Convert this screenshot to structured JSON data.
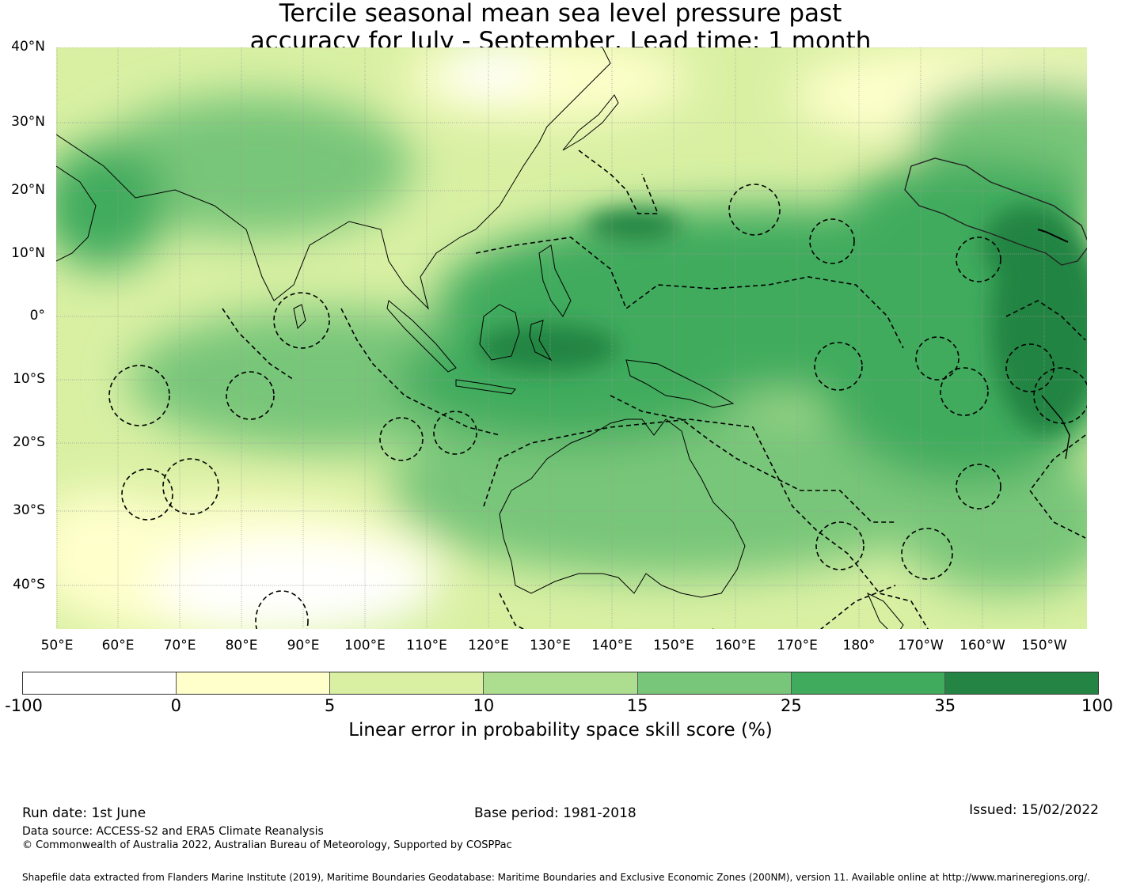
{
  "title": {
    "line1": "Tercile seasonal mean sea level pressure past",
    "line2": "accuracy for July - September, Lead time: 1 month"
  },
  "axes": {
    "lat_labels": [
      "40°N",
      "30°N",
      "20°N",
      "10°N",
      "0°",
      "10°S",
      "20°S",
      "30°S",
      "40°S"
    ],
    "lon_labels": [
      "50°E",
      "60°E",
      "70°E",
      "80°E",
      "90°E",
      "100°E",
      "110°E",
      "120°E",
      "130°E",
      "140°E",
      "150°E",
      "160°E",
      "170°E",
      "180°",
      "170°W",
      "160°W",
      "150°W"
    ]
  },
  "colorbar": {
    "ticks": [
      "-100",
      "0",
      "5",
      "10",
      "15",
      "25",
      "35",
      "100"
    ],
    "colors": [
      "#ffffff",
      "#ffffcc",
      "#d9f0a3",
      "#addd8e",
      "#78c679",
      "#41ab5d",
      "#238443"
    ],
    "label": "Linear error in probability space skill score (%)"
  },
  "footer": {
    "run_date": "Run date: 1st June",
    "base_period": "Base period: 1981-2018",
    "issued": "Issued: 15/02/2022",
    "data_source": "Data source: ACCESS-S2 and ERA5 Climate Reanalysis",
    "copyright": "© Commonwealth of Australia 2022, Australian Bureau of Meteorology, Supported by COSPPac",
    "shapefile": "Shapefile data extracted from Flanders Marine Institute (2019), Maritime Boundaries Geodatabase: Maritime Boundaries and Exclusive Economic Zones (200NM), version 11. Available online at http://www.marineregions.org/."
  }
}
